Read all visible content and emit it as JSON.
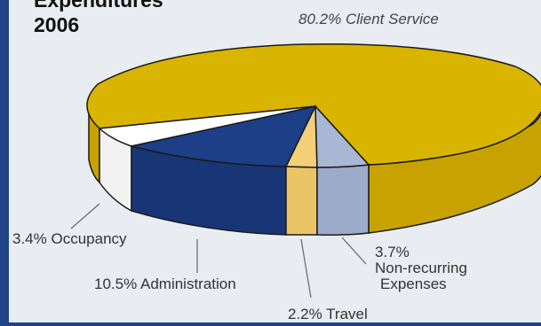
{
  "chart_data": {
    "type": "pie",
    "title_lines": [
      "Expenditures",
      "2006"
    ],
    "slices": [
      {
        "label": "Client Service",
        "value": 80.2,
        "value_text": "80.2%",
        "color": "#d9b400",
        "side": "#c8a300"
      },
      {
        "label": "Occupancy",
        "value": 3.4,
        "value_text": "3.4%",
        "color": "#ffffff",
        "side": "#f2f2f2"
      },
      {
        "label": "Administration",
        "value": 10.5,
        "value_text": "10.5%",
        "color": "#1d3f88",
        "side": "#183676"
      },
      {
        "label": "Travel",
        "value": 2.2,
        "value_text": "2.2%",
        "color": "#f3cf7a",
        "side": "#ebc466"
      },
      {
        "label": "Non-recurring Expenses",
        "label_lines": [
          "Non-recurring",
          "Expenses"
        ],
        "value": 3.7,
        "value_text": "3.7%",
        "color": "#aab7d4",
        "side": "#9dabca"
      }
    ],
    "colors": {
      "accent": "#1e4386",
      "background": "#e9ecf1",
      "outline": "#1a1a1a"
    }
  }
}
